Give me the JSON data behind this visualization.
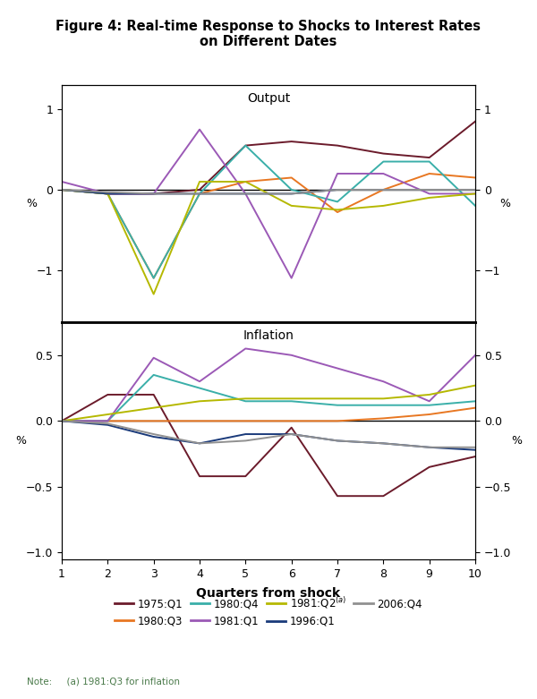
{
  "title": "Figure 4: Real-time Response to Shocks to Interest Rates\non Different Dates",
  "xlabel": "Quarters from shock",
  "quarters": [
    1,
    2,
    3,
    4,
    5,
    6,
    7,
    8,
    9,
    10
  ],
  "output_panel_label": "Output",
  "inflation_panel_label": "Inflation",
  "series": {
    "1975:Q1": {
      "color": "#6B1B2B",
      "output": [
        0.0,
        -0.05,
        -0.05,
        0.0,
        0.55,
        0.6,
        0.55,
        0.45,
        0.4,
        0.85
      ],
      "inflation": [
        0.0,
        0.2,
        0.2,
        -0.42,
        -0.42,
        -0.05,
        -0.57,
        -0.57,
        -0.35,
        -0.27
      ]
    },
    "1980:Q3": {
      "color": "#E87722",
      "output": [
        0.0,
        -0.05,
        -1.1,
        -0.05,
        0.1,
        0.15,
        -0.28,
        0.0,
        0.2,
        0.15
      ],
      "inflation": [
        0.0,
        0.0,
        0.0,
        0.0,
        0.0,
        0.0,
        0.0,
        0.02,
        0.05,
        0.1
      ]
    },
    "1980:Q4": {
      "color": "#3AAFA9",
      "output": [
        0.0,
        -0.05,
        -1.1,
        -0.05,
        0.55,
        0.0,
        -0.15,
        0.35,
        0.35,
        -0.2
      ],
      "inflation": [
        0.0,
        0.0,
        0.35,
        0.25,
        0.15,
        0.15,
        0.12,
        0.12,
        0.12,
        0.15
      ]
    },
    "1981:Q1": {
      "color": "#9B59B6",
      "output": [
        0.1,
        -0.05,
        -0.05,
        0.75,
        -0.05,
        -1.1,
        0.2,
        0.2,
        -0.05,
        -0.05
      ],
      "inflation": [
        0.0,
        0.0,
        0.48,
        0.3,
        0.55,
        0.5,
        0.4,
        0.3,
        0.15,
        0.5
      ]
    },
    "1981:Q2": {
      "color": "#B5B800",
      "output": [
        0.0,
        -0.05,
        -1.3,
        0.1,
        0.1,
        -0.2,
        -0.25,
        -0.2,
        -0.1,
        -0.05
      ],
      "inflation": [
        0.0,
        0.05,
        0.1,
        0.15,
        0.17,
        0.17,
        0.17,
        0.17,
        0.2,
        0.27
      ]
    },
    "1996:Q1": {
      "color": "#1A3A7A",
      "output": [
        0.0,
        -0.05,
        -0.05,
        -0.05,
        -0.05,
        -0.05,
        0.0,
        0.0,
        0.0,
        0.0
      ],
      "inflation": [
        0.0,
        -0.03,
        -0.12,
        -0.17,
        -0.1,
        -0.1,
        -0.15,
        -0.17,
        -0.2,
        -0.22
      ]
    },
    "2006:Q4": {
      "color": "#909090",
      "output": [
        0.0,
        -0.03,
        -0.05,
        -0.05,
        -0.05,
        -0.05,
        0.0,
        0.0,
        0.0,
        0.0
      ],
      "inflation": [
        0.0,
        -0.02,
        -0.1,
        -0.17,
        -0.15,
        -0.1,
        -0.15,
        -0.17,
        -0.2,
        -0.2
      ]
    }
  },
  "legend_order": [
    "1975:Q1",
    "1980:Q3",
    "1980:Q4",
    "1981:Q1",
    "1981:Q2",
    "1996:Q1",
    "2006:Q4"
  ],
  "output_ylim": [
    -1.65,
    1.3
  ],
  "output_yticks": [
    -1.0,
    0.0,
    1.0
  ],
  "inflation_ylim": [
    -1.05,
    0.75
  ],
  "inflation_yticks": [
    -1.0,
    -0.5,
    0.0,
    0.5
  ],
  "note_text": "Note:     (a) 1981:Q3 for inflation",
  "note_color": "#4A7A4A",
  "background_color": "#ffffff",
  "line_width": 1.4
}
